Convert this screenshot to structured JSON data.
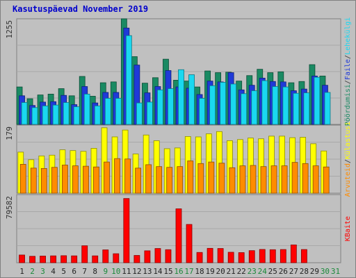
{
  "chart_data": {
    "type": "bar",
    "title": "Kasutuspäevad November 2019",
    "categories": [
      "1",
      "2",
      "3",
      "4",
      "5",
      "6",
      "7",
      "8",
      "9",
      "10",
      "11",
      "12",
      "13",
      "14",
      "15",
      "16",
      "17",
      "18",
      "19",
      "20",
      "21",
      "22",
      "23",
      "24",
      "25",
      "26",
      "27",
      "28",
      "29",
      "30",
      "31"
    ],
    "weekend_days": [
      "2",
      "3",
      "9",
      "10",
      "16",
      "17",
      "23",
      "24",
      "30",
      "31"
    ],
    "panels": [
      {
        "id": "top",
        "max_label": "1255",
        "ymax": 1255,
        "series": [
          {
            "name": "Pöördumisi",
            "color": "#1a8a63",
            "values": [
              445,
              305,
              350,
              360,
              425,
              340,
              570,
              335,
              495,
              505,
              1255,
              805,
              490,
              555,
              775,
              525,
              515,
              445,
              635,
              615,
              620,
              515,
              580,
              655,
              615,
              625,
              495,
              510,
              710,
              575,
              0
            ]
          },
          {
            "name": "Faile",
            "color": "#1f3ad8",
            "values": [
              340,
              225,
              265,
              270,
              345,
              235,
              450,
              255,
              380,
              380,
              1145,
              705,
              375,
              450,
              640,
              445,
              430,
              355,
              515,
              505,
              615,
              410,
              465,
              550,
              510,
              505,
              400,
              420,
              575,
              465,
              0
            ]
          },
          {
            "name": "Lehekülgi",
            "color": "#1ad8f0",
            "values": [
              260,
              200,
              220,
              230,
              260,
              210,
              360,
              220,
              310,
              310,
              1055,
              255,
              265,
              410,
              425,
              650,
              590,
              310,
              460,
              500,
              480,
              365,
              400,
              520,
              450,
              445,
              370,
              375,
              560,
              380,
              0
            ]
          }
        ],
        "legend": [
          "Pöördumisi",
          "/",
          "Faile",
          "/",
          "Lehekülgi"
        ],
        "legend_colors": [
          "#1a8a63",
          "#333333",
          "#1f3ad8",
          "#333333",
          "#1ad8f0"
        ]
      },
      {
        "id": "mid",
        "max_label": "179",
        "ymax": 179,
        "series": [
          {
            "name": "Külastusi",
            "color": "#ffff00",
            "values": [
              108,
              88,
              98,
              100,
              114,
              112,
              110,
              118,
              172,
              148,
              166,
              103,
              153,
              138,
              117,
              119,
              149,
              148,
              156,
              162,
              138,
              141,
              145,
              143,
              150,
              150,
              146,
              147,
              130,
              111,
              0
            ]
          },
          {
            "name": "Arvuteid",
            "color": "#ff8c00",
            "values": [
              76,
              66,
              65,
              68,
              74,
              72,
              71,
              69,
              82,
              91,
              90,
              66,
              75,
              70,
              68,
              70,
              85,
              78,
              82,
              79,
              67,
              72,
              73,
              70,
              72,
              72,
              81,
              78,
              72,
              69,
              0
            ]
          }
        ],
        "legend": [
          "Arvuteid",
          "/",
          "Külastusi"
        ],
        "legend_colors": [
          "#ff8c00",
          "#333333",
          "#ffff00"
        ]
      },
      {
        "id": "bottom",
        "max_label": "79582",
        "ymax": 79582,
        "series": [
          {
            "name": "KBaite",
            "color": "#ff0000",
            "values": [
              9000,
              7500,
              7800,
              8000,
              8200,
              8000,
              19800,
              8000,
              15000,
              10500,
              75000,
              8500,
              13900,
              16600,
              15200,
              63000,
              44700,
              12000,
              16800,
              16600,
              12200,
              11800,
              14100,
              15500,
              15200,
              15400,
              20800,
              15400,
              0,
              0,
              0
            ]
          }
        ],
        "legend": [
          "KBaite"
        ],
        "legend_colors": [
          "#ff0000"
        ]
      }
    ]
  }
}
